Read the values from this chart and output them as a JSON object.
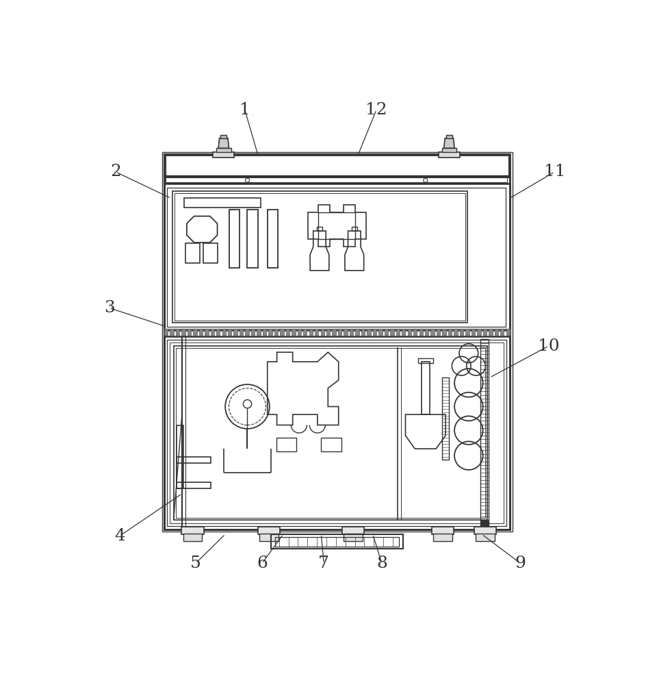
{
  "bg_color": "#ffffff",
  "lc": "#333333",
  "fig_width": 9.63,
  "fig_height": 10.0,
  "dpi": 100
}
